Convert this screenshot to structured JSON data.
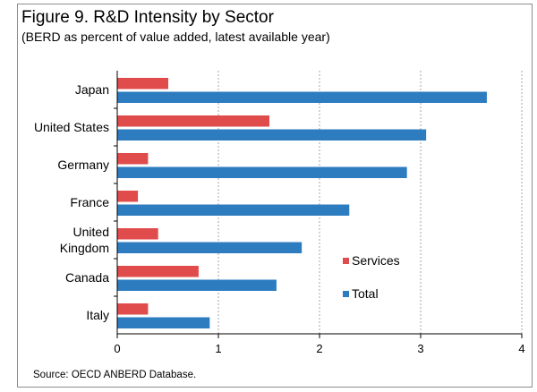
{
  "title": "Figure 9. R&D Intensity by Sector",
  "subtitle": "(BERD as percent of value added, latest available year)",
  "source": "Source: OECD ANBERD Database.",
  "chart_data": {
    "type": "bar",
    "orientation": "horizontal",
    "categories": [
      "Japan",
      "United States",
      "Germany",
      "France",
      "United Kingdom",
      "Canada",
      "Italy"
    ],
    "category_display_lines": [
      [
        "Japan"
      ],
      [
        "United States"
      ],
      [
        "Germany"
      ],
      [
        "France"
      ],
      [
        "United",
        "Kingdom"
      ],
      [
        "Canada"
      ],
      [
        "Italy"
      ]
    ],
    "series": [
      {
        "name": "Services",
        "color": "#e04b4b",
        "values": [
          0.5,
          1.5,
          0.3,
          0.2,
          0.4,
          0.8,
          0.3
        ]
      },
      {
        "name": "Total",
        "color": "#2e7cc0",
        "values": [
          3.65,
          3.05,
          2.86,
          2.29,
          1.82,
          1.57,
          0.91
        ]
      }
    ],
    "xlim": [
      0,
      4
    ],
    "xticks": [
      "0",
      "1",
      "2",
      "3",
      "4"
    ],
    "xlabel": "",
    "ylabel": "",
    "grid": "vertical dashed",
    "legend": "right"
  }
}
